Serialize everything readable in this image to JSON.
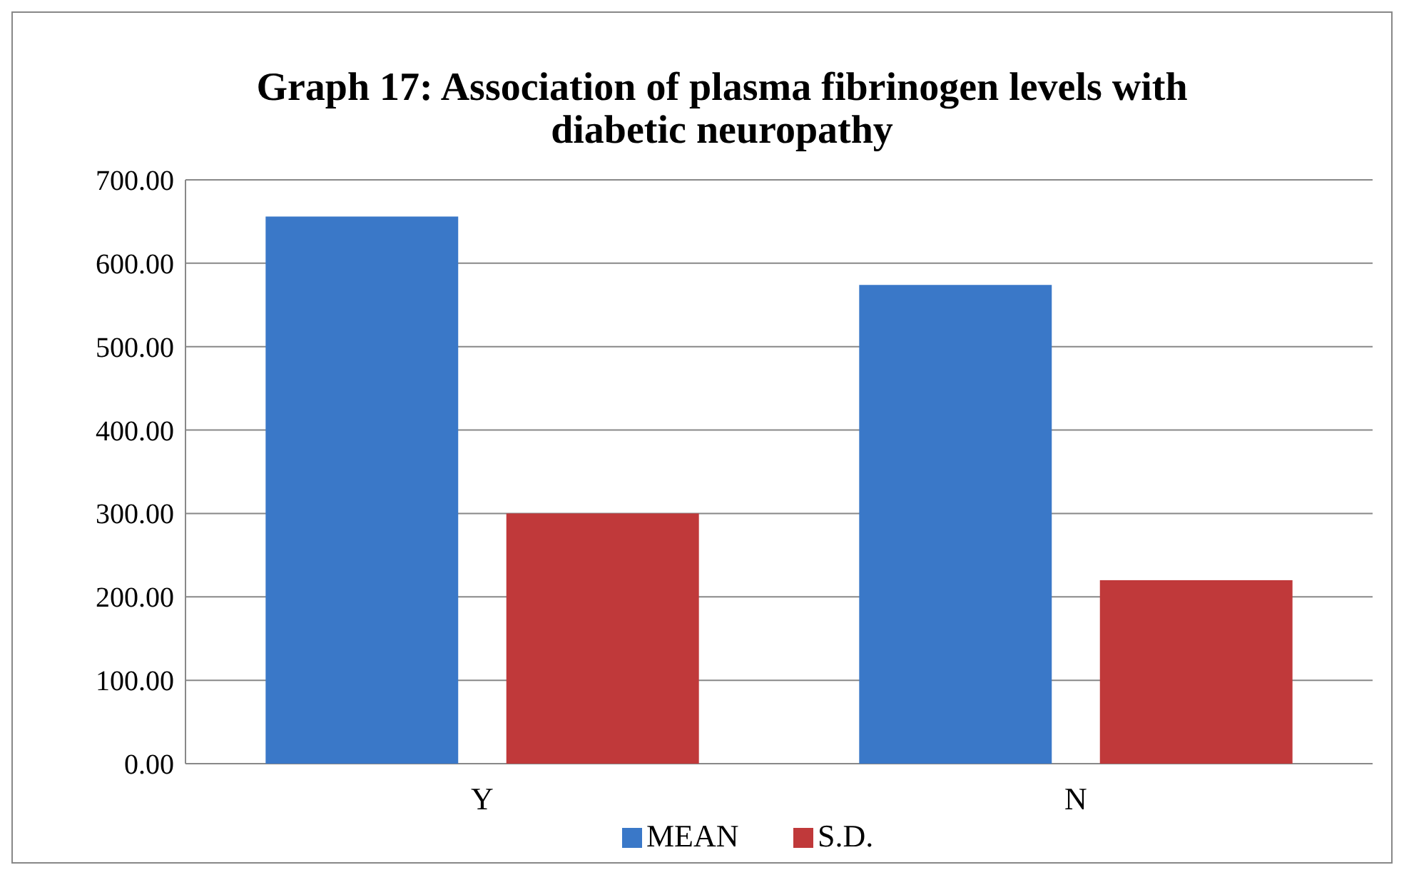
{
  "chart_data": {
    "type": "bar",
    "title": "Graph 17: Association of plasma fibrinogen levels with diabetic neuropathy",
    "categories": [
      "Y",
      "N"
    ],
    "series": [
      {
        "name": "MEAN",
        "color": "#3a78c8",
        "values": [
          656,
          574
        ]
      },
      {
        "name": "S.D.",
        "color": "#c0393a",
        "values": [
          300,
          220
        ]
      }
    ],
    "ylim": [
      0,
      700
    ],
    "yticks": [
      {
        "value": 0,
        "label": "0.00"
      },
      {
        "value": 100,
        "label": "100.00"
      },
      {
        "value": 200,
        "label": "200.00"
      },
      {
        "value": 300,
        "label": "300.00"
      },
      {
        "value": 400,
        "label": "400.00"
      },
      {
        "value": 500,
        "label": "500.00"
      },
      {
        "value": 600,
        "label": "600.00"
      },
      {
        "value": 700,
        "label": "700.00"
      }
    ],
    "grid": "y",
    "legend": "bottom"
  }
}
